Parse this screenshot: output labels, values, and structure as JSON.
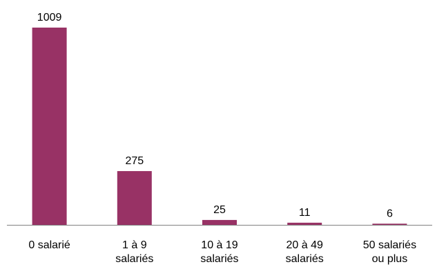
{
  "chart_data": {
    "type": "bar",
    "title": "",
    "xlabel": "",
    "ylabel": "",
    "categories": [
      [
        "0 salarié"
      ],
      [
        "1 à 9",
        "salariés"
      ],
      [
        "10 à 19",
        "salariés"
      ],
      [
        "20 à 49",
        "salariés"
      ],
      [
        "50 salariés",
        "ou plus"
      ]
    ],
    "values": [
      1009,
      275,
      25,
      11,
      6
    ],
    "ylim": [
      0,
      1009
    ],
    "grid": false,
    "legend": "none",
    "bar_color": "#983265",
    "axis_color": "#808080"
  }
}
